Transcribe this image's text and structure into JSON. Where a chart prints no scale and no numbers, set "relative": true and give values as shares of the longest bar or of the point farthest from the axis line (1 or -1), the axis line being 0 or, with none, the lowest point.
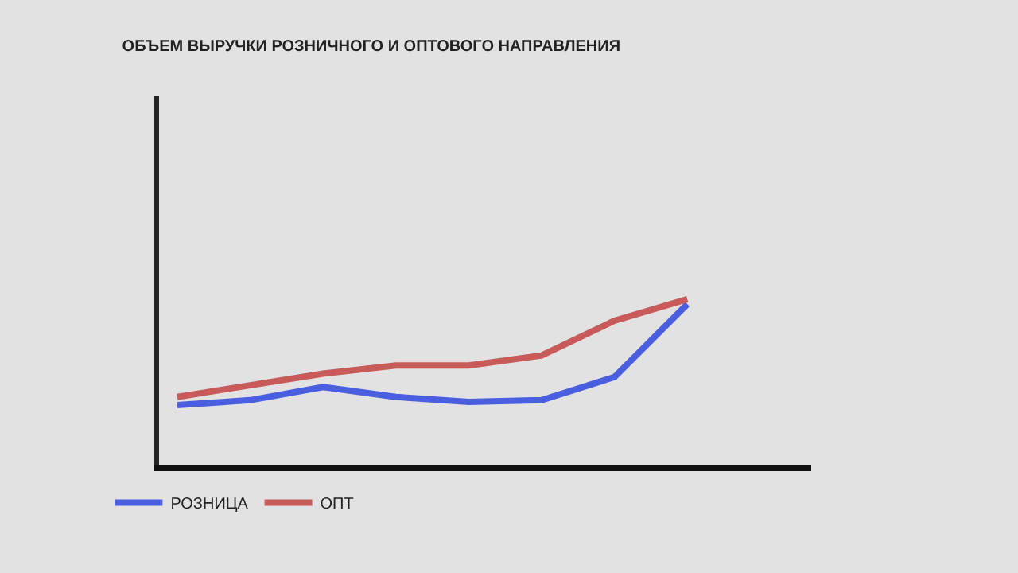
{
  "chart_data": {
    "type": "line",
    "title": "ОБЪЕМ ВЫРУЧКИ РОЗНИЧНОГО И ОПТОВОГО НАПРАВЛЕНИЯ",
    "relative": true,
    "categories": [
      null,
      null,
      null,
      null,
      null,
      null,
      null,
      null
    ],
    "series": [
      {
        "name": "РОЗНИЦА",
        "color": "#4a5fe0",
        "values": [
          0.36,
          0.39,
          0.47,
          0.41,
          0.38,
          0.39,
          0.53,
          0.97
        ]
      },
      {
        "name": "ОПТ",
        "color": "#c85a5a",
        "values": [
          0.41,
          0.48,
          0.55,
          0.6,
          0.6,
          0.66,
          0.87,
          1
        ]
      }
    ],
    "legend": "bottom",
    "marker": "none",
    "line_style": "solid",
    "grid": false
  }
}
